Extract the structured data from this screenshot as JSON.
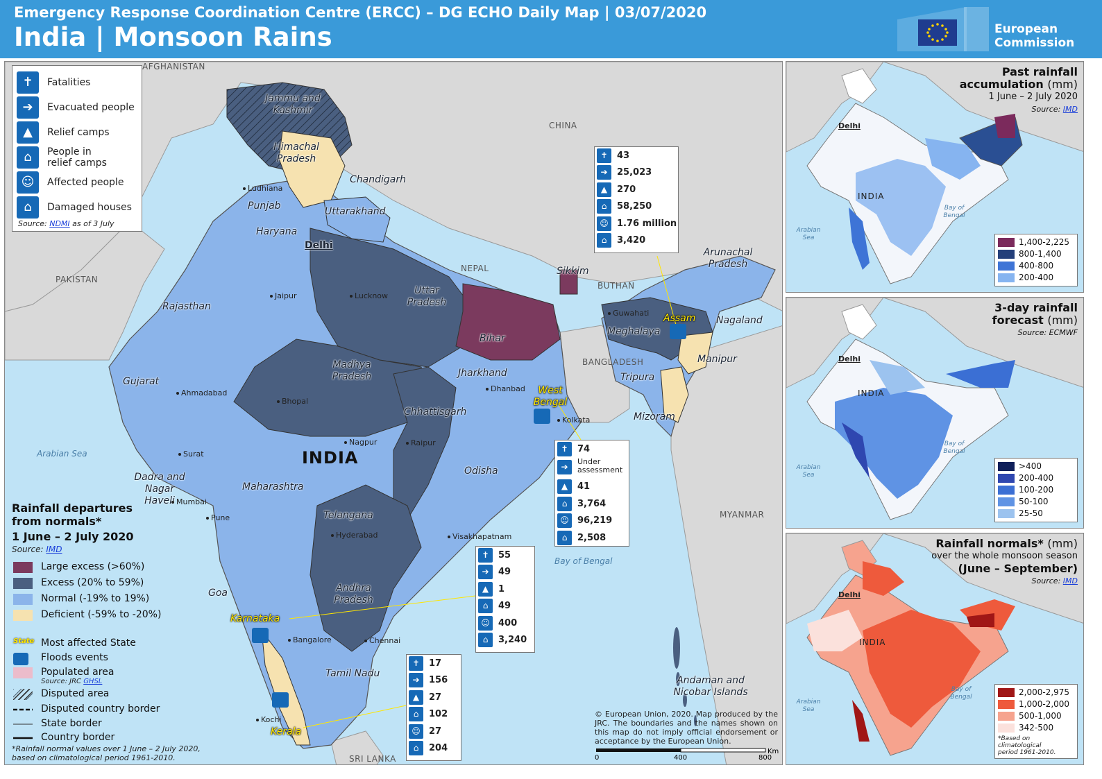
{
  "header": {
    "subtitle": "Emergency Response Coordination Centre (ERCC) – DG ECHO Daily Map | 03/07/2020",
    "title": "India | Monsoon Rains",
    "logo_line1": "European",
    "logo_line2": "Commission"
  },
  "impact_legend": {
    "items": [
      {
        "label": "Fatalities",
        "icon": "fatalities-icon",
        "glyph": "✝"
      },
      {
        "label": "Evacuated people",
        "icon": "evacuated-people-icon",
        "glyph": "➔"
      },
      {
        "label": "Relief camps",
        "icon": "relief-camp-icon",
        "glyph": "▲"
      },
      {
        "label": "People in",
        "label2": "relief camps",
        "icon": "people-in-camps-icon",
        "glyph": "⌂"
      },
      {
        "label": "Affected people",
        "icon": "affected-people-icon",
        "glyph": "☺"
      },
      {
        "label": "Damaged houses",
        "icon": "damaged-houses-icon",
        "glyph": "⌂"
      }
    ],
    "source_prefix": "Source:",
    "source_link": "NDMI",
    "source_suffix": "as of 3 July"
  },
  "stat_boxes": {
    "assam": [
      "43",
      "25,023",
      "270",
      "58,250",
      "1.76 million",
      "3,420"
    ],
    "west_bengal": [
      "74",
      "Under",
      "assessment",
      "41",
      "3,764",
      "96,219",
      "2,508"
    ],
    "karnataka": [
      "55",
      "49",
      "1",
      "49",
      "400",
      "3,240"
    ],
    "kerala": [
      "17",
      "156",
      "27",
      "102",
      "27",
      "204"
    ]
  },
  "map_labels": {
    "countries": {
      "afghanistan": "AFGHANISTAN",
      "china": "CHINA",
      "pakistan": "PAKISTAN",
      "nepal": "NEPAL",
      "bhutan": "BUTHAN",
      "bangladesh": "BANGLADESH",
      "myanmar": "MYANMAR",
      "sri_lanka": "SRI LANKA",
      "india": "INDIA"
    },
    "seas": {
      "arabian_sea": "Arabian Sea",
      "bay_of_bengal": "Bay of Bengal"
    },
    "states": {
      "jammu_kashmir": "Jammu and Kashmir",
      "himachal": "Himachal Pradesh",
      "punjab": "Punjab",
      "chandigarh": "Chandigarh",
      "uttarakhand": "Uttarakhand",
      "haryana": "Haryana",
      "delhi": "Delhi",
      "rajasthan": "Rajasthan",
      "uttar_pradesh": "Uttar Pradesh",
      "bihar": "Bihar",
      "sikkim": "Sikkim",
      "arunachal": "Arunachal Pradesh",
      "assam": "Assam",
      "nagaland": "Nagaland",
      "meghalaya": "Meghalaya",
      "manipur": "Manipur",
      "tripura": "Tripura",
      "mizoram": "Mizoram",
      "gujarat": "Gujarat",
      "madhya_pradesh": "Madhya Pradesh",
      "jharkhand": "Jharkhand",
      "west_bengal": "West Bengal",
      "chhattisgarh": "Chhattisgarh",
      "odisha": "Odisha",
      "dadra": "Dadra and Nagar Haveli",
      "maharashtra": "Maharashtra",
      "telangana": "Telangana",
      "andhra": "Andhra Pradesh",
      "goa": "Goa",
      "karnataka": "Karnataka",
      "tamil_nadu": "Tamil Nadu",
      "kerala": "Kerala",
      "andaman": "Andaman and Nicobar Islands"
    },
    "cities": {
      "ludhiana": "Ludhiana",
      "jaipur": "Jaipur",
      "lucknow": "Lucknow",
      "guwahati": "Guwahati",
      "ahmadabad": "Ahmadabad",
      "bhopal": "Bhopal",
      "dhanbad": "Dhanbad",
      "kolkata": "Kolkata",
      "nagpur": "Nagpur",
      "raipur": "Raipur",
      "surat": "Surat",
      "mumbai": "Mumbai",
      "pune": "Pune",
      "hyderabad": "Hyderabad",
      "visakhapatnam": "Visakhapatnam",
      "bangalore": "Bangalore",
      "chennai": "Chennai",
      "kochi": "Kochi"
    }
  },
  "rain_legend": {
    "title1": "Rainfall departures",
    "title2": "from normals*",
    "period": "1 June – 2 July 2020",
    "source_prefix": "Source:",
    "source_link": "IMD",
    "classes": [
      {
        "label": "Large excess (>60%)",
        "color": "#7b3a5e"
      },
      {
        "label": "Excess (20% to 59%)",
        "color": "#4a5f80"
      },
      {
        "label": "Normal (-19% to 19%)",
        "color": "#8bb4ea"
      },
      {
        "label": "Deficient (-59% to -20%)",
        "color": "#f6e2b0"
      }
    ],
    "symbols": [
      {
        "label": "Most affected State",
        "tag": "State"
      },
      {
        "label": "Floods events"
      },
      {
        "label": "Populated area",
        "sub_prefix": "Source: JRC",
        "sub_link": "GHSL"
      },
      {
        "label": "Disputed area"
      },
      {
        "label": "Disputed country border"
      },
      {
        "label": "State border"
      },
      {
        "label": "Country border"
      }
    ],
    "footnote1": "*Rainfall normal values over 1 June – 2 July 2020,",
    "footnote2": "based on climatological period 1961-2010."
  },
  "disclaimer": "© European Union, 2020. Map produced by the JRC. The boundaries and the names shown on this map do not imply official endorsement or acceptance by the European Union.",
  "scalebar": {
    "t0": "0",
    "t1": "400",
    "t2": "800",
    "unit": "Km"
  },
  "insets": {
    "past": {
      "title1": "Past rainfall",
      "title2": "accumulation",
      "unit": "(mm)",
      "period": "1 June – 2 July 2020",
      "source_prefix": "Source:",
      "source_link": "IMD",
      "delhi": "Delhi",
      "india": "INDIA",
      "arabian": "Arabian Sea",
      "bay": "Bay of Bengal",
      "legend": [
        {
          "label": "1,400-2,225",
          "color": "#7b2a5c"
        },
        {
          "label": "800-1,400",
          "color": "#243f7a"
        },
        {
          "label": "400-800",
          "color": "#3e74d6"
        },
        {
          "label": "200-400",
          "color": "#86b4f0"
        }
      ]
    },
    "forecast": {
      "title1": "3-day rainfall",
      "title2": "forecast",
      "unit": "(mm)",
      "source": "Source: ECMWF",
      "delhi": "Delhi",
      "india": "INDIA",
      "arabian": "Arabian Sea",
      "bay": "Bay of Bengal",
      "legend": [
        {
          "label": ">400",
          "color": "#0f1f5a"
        },
        {
          "label": "200-400",
          "color": "#2f47b0"
        },
        {
          "label": "100-200",
          "color": "#3b6fd4"
        },
        {
          "label": "50-100",
          "color": "#5f93e4"
        },
        {
          "label": "25-50",
          "color": "#9cc3ef"
        }
      ]
    },
    "normals": {
      "title1": "Rainfall normals*",
      "unit": "(mm)",
      "sub": "over the whole monsoon season",
      "period": "(June – September)",
      "source_prefix": "Source:",
      "source_link": "IMD",
      "delhi": "Delhi",
      "india": "INDIA",
      "arabian": "Arabian Sea",
      "bay": "Bay of Bengal",
      "legend": [
        {
          "label": "2,000-2,975",
          "color": "#a01616"
        },
        {
          "label": "1,000-2,000",
          "color": "#ee5a3c"
        },
        {
          "label": "500-1,000",
          "color": "#f6a38e"
        },
        {
          "label": "342-500",
          "color": "#fbe1dc"
        }
      ],
      "note1": "*Based on climatological",
      "note2": "period 1961-2010."
    }
  }
}
